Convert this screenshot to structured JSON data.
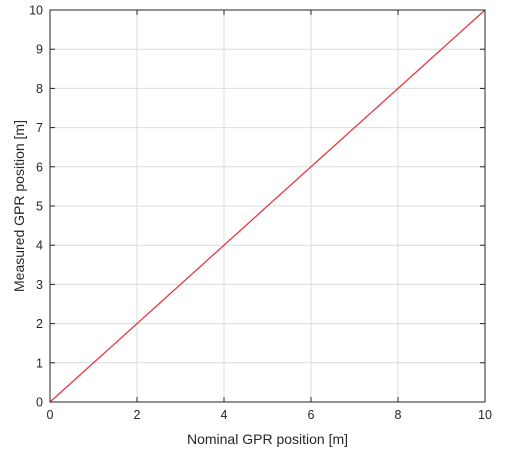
{
  "chart_data": {
    "type": "line",
    "title": "",
    "xlabel": "Nominal GPR position [m]",
    "ylabel": "Measured GPR position [m]",
    "xlim": [
      0,
      10
    ],
    "ylim": [
      0,
      10
    ],
    "xticks": [
      "0",
      "2",
      "4",
      "6",
      "8",
      "10"
    ],
    "yticks": [
      "0",
      "1",
      "2",
      "3",
      "4",
      "5",
      "6",
      "7",
      "8",
      "9",
      "10"
    ],
    "grid": true,
    "series": [
      {
        "x": [
          0,
          10
        ],
        "y": [
          0,
          10
        ],
        "color": "#e8393d"
      }
    ]
  }
}
